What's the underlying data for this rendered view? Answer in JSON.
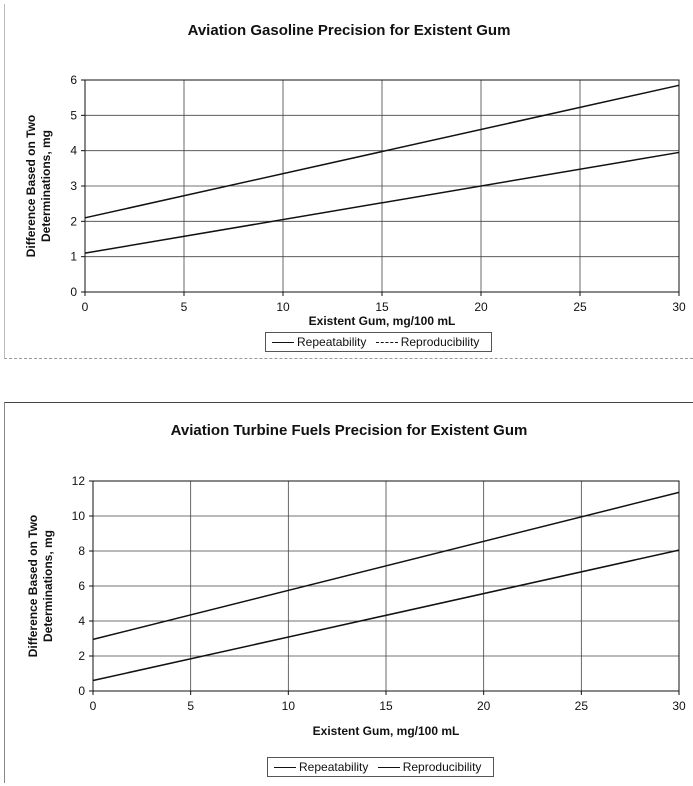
{
  "chart_data": [
    {
      "type": "line",
      "title": "Aviation Gasoline Precision for Existent Gum",
      "xlabel": "Existent Gum, mg/100 mL",
      "ylabel_lines": [
        "Difference Based on Two",
        "Determinations, mg"
      ],
      "xlim": [
        0,
        30
      ],
      "ylim": [
        0,
        6
      ],
      "xticks": [
        0,
        5,
        10,
        15,
        20,
        25,
        30
      ],
      "yticks": [
        0,
        1,
        2,
        3,
        4,
        5,
        6
      ],
      "grid": true,
      "legend_position": "bottom",
      "series": [
        {
          "name": "Repeatability",
          "x": [
            0,
            30
          ],
          "y": [
            1.1,
            3.95
          ]
        },
        {
          "name": "Reproducibility",
          "x": [
            0,
            30
          ],
          "y": [
            2.1,
            5.85
          ]
        }
      ]
    },
    {
      "type": "line",
      "title": "Aviation Turbine Fuels Precision for Existent Gum",
      "xlabel": "Existent Gum, mg/100 mL",
      "ylabel_lines": [
        "Difference Based on Two",
        "Determinations, mg"
      ],
      "xlim": [
        0,
        30
      ],
      "ylim": [
        0,
        12
      ],
      "xticks": [
        0,
        5,
        10,
        15,
        20,
        25,
        30
      ],
      "yticks": [
        0,
        2,
        4,
        6,
        8,
        10,
        12
      ],
      "grid": true,
      "legend_position": "bottom",
      "series": [
        {
          "name": "Repeatability",
          "x": [
            0,
            30
          ],
          "y": [
            0.6,
            8.05
          ]
        },
        {
          "name": "Reproducibility",
          "x": [
            0,
            30
          ],
          "y": [
            2.95,
            11.35
          ]
        }
      ]
    }
  ],
  "colors": {
    "line": "#111111",
    "grid": "#444444"
  }
}
